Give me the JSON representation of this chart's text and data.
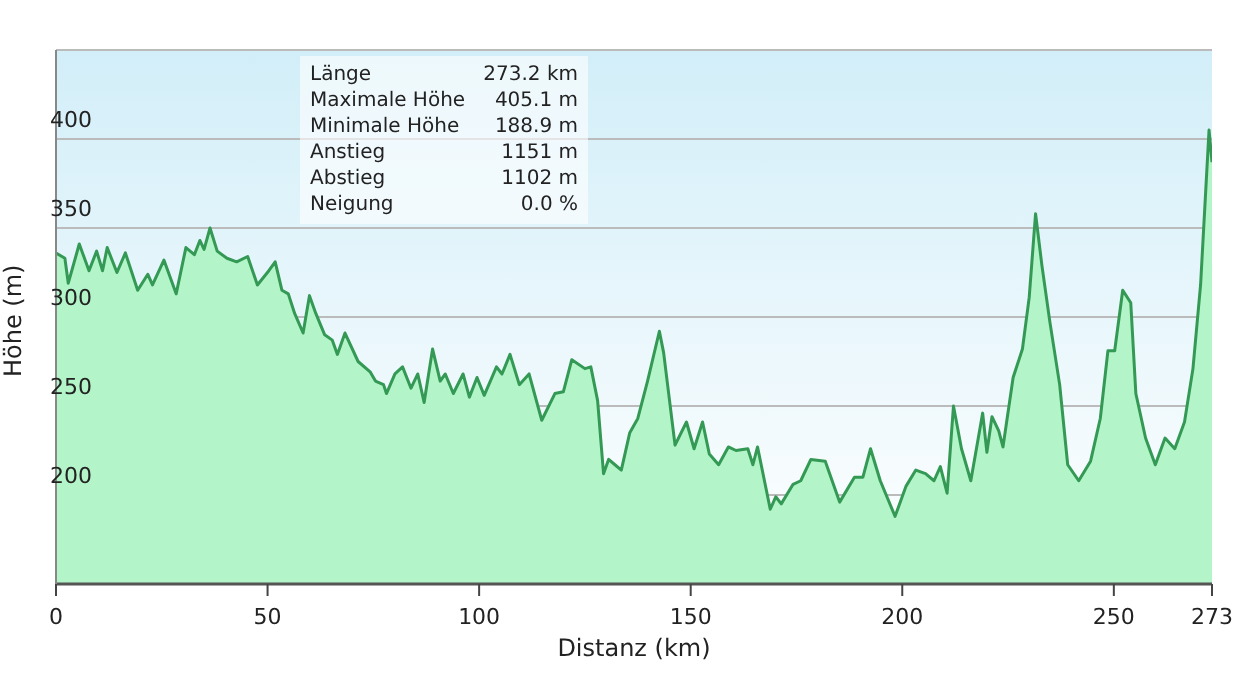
{
  "chart_data": {
    "type": "area",
    "xlabel": "Distanz  (km)",
    "ylabel": "Höhe (m)",
    "xlim": [
      0,
      273.2
    ],
    "xticks": [
      0,
      50,
      100,
      150,
      200,
      250,
      {
        "value": 273.2,
        "label": "273"
      }
    ],
    "ylim": [
      150,
      450
    ],
    "yticks": [
      {
        "value": 150,
        "label": null
      },
      200,
      250,
      300,
      350,
      400,
      {
        "value": 450,
        "label": null
      }
    ],
    "grid": "y",
    "annotations": [
      "Länge",
      "273.2 km",
      "Maximale Höhe",
      "405.1 m",
      "Minimale Höhe",
      "188.9 m",
      "Anstieg",
      "1151 m",
      "Abstieg",
      "1102 m",
      "Neigung",
      "0.0 %"
    ],
    "series": [
      {
        "color": "#339955",
        "x": [
          0,
          2.1,
          2.9,
          5.5,
          7.8,
          9.6,
          11,
          12.1,
          14.4,
          16.4,
          19.3,
          21.7,
          22.8,
          25.5,
          28.4,
          30.7,
          32.7,
          34,
          35,
          36.4,
          38.1,
          40.4,
          42.7,
          45.3,
          47.6,
          50.3,
          51.8,
          53.4,
          54.9,
          56.4,
          58.4,
          59.9,
          61.4,
          63.5,
          65.3,
          66.5,
          68.3,
          71.4,
          74.3,
          75.5,
          77.4,
          78.1,
          80.1,
          81.9,
          83.9,
          85.5,
          87,
          89,
          90.8,
          92,
          93.9,
          96.2,
          97.7,
          99.5,
          101.2,
          104.1,
          105.4,
          107.3,
          109.5,
          111.8,
          114.8,
          117.9,
          119.9,
          121.9,
          125,
          126.4,
          128,
          129.4,
          130.6,
          132.1,
          133.6,
          135.6,
          137.5,
          139.8,
          142.6,
          143.6,
          146.3,
          149,
          150.8,
          152.8,
          154.4,
          156.6,
          158.9,
          160.7,
          163.5,
          164.7,
          165.8,
          168.8,
          170.1,
          171.4,
          174.2,
          176,
          178.4,
          181.8,
          185.2,
          188.7,
          190.7,
          192.5,
          194.8,
          198.3,
          200.9,
          203.2,
          205.5,
          207.5,
          209,
          210.6,
          212.1,
          214,
          216.2,
          219,
          220,
          221.2,
          222.8,
          223.8,
          226.2,
          228.4,
          230,
          231.5,
          233,
          234.9,
          237.2,
          239.1,
          241.7,
          244.5,
          246.8,
          248.6,
          250.2,
          252.1,
          254,
          255.2,
          257.5,
          259.8,
          262.1,
          264.4,
          266.7,
          268.7,
          270.5,
          272.5,
          273.2
        ],
        "values": [
          336,
          333,
          319,
          341,
          326,
          337,
          326,
          339,
          325,
          336,
          315,
          324,
          318,
          332,
          313,
          339,
          335,
          343,
          338,
          350,
          337,
          333,
          331,
          334,
          318,
          326,
          331,
          315,
          313,
          302,
          291,
          312,
          302,
          290,
          287,
          279,
          291,
          275,
          269,
          264,
          262,
          257,
          268,
          272,
          260,
          268,
          252,
          282,
          264,
          268,
          257,
          268,
          255,
          266,
          256,
          272,
          268,
          279,
          262,
          268,
          242,
          257,
          258,
          276,
          271,
          272,
          253,
          212,
          220,
          217,
          214,
          235,
          243,
          264,
          292,
          280,
          228,
          241,
          226,
          241,
          223,
          217,
          227,
          225,
          226,
          217,
          227,
          192,
          199,
          195,
          206,
          208,
          220,
          219,
          196,
          210,
          210,
          226,
          208,
          188,
          205,
          214,
          212,
          208,
          216,
          201,
          250,
          226,
          208,
          246,
          224,
          244,
          236,
          227,
          266,
          282,
          311,
          358,
          329,
          297,
          262,
          217,
          208,
          219,
          243,
          281,
          281,
          315,
          308,
          257,
          232,
          217,
          232,
          226,
          241,
          271,
          318,
          405,
          387
        ]
      }
    ]
  }
}
